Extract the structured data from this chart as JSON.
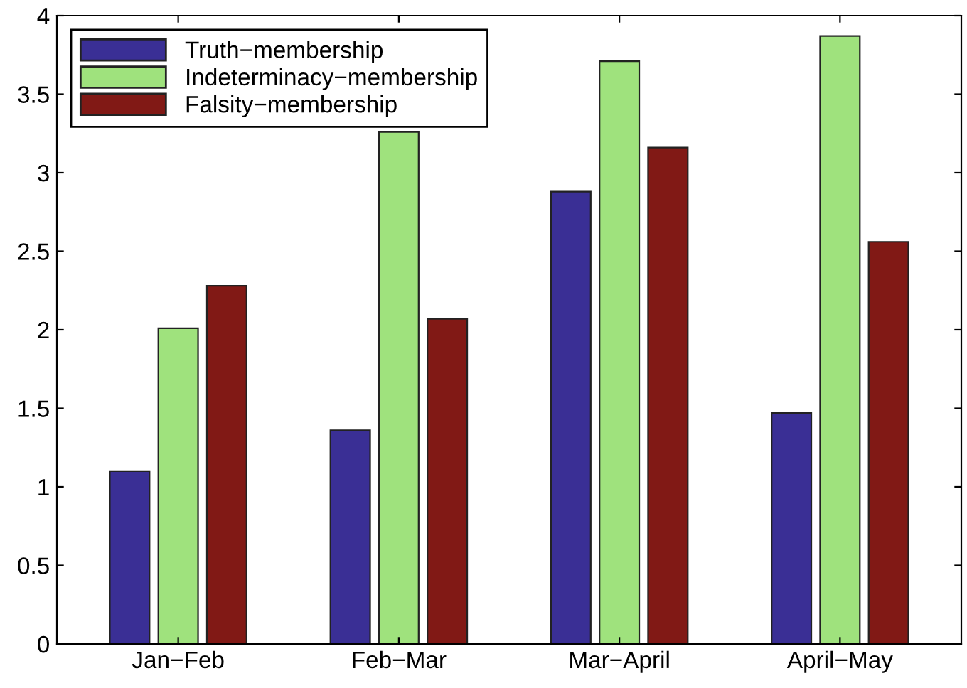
{
  "chart_data": {
    "type": "bar",
    "categories": [
      "Jan−Feb",
      "Feb−Mar",
      "Mar−April",
      "April−May"
    ],
    "series": [
      {
        "name": "Truth−membership",
        "color": "#3a2f95",
        "values": [
          1.1,
          1.36,
          2.88,
          1.47
        ]
      },
      {
        "name": "Indeterminacy−membership",
        "color": "#9fe27d",
        "values": [
          2.01,
          3.26,
          3.71,
          3.87
        ]
      },
      {
        "name": "Falsity−membership",
        "color": "#811915",
        "values": [
          2.28,
          2.07,
          3.16,
          2.56
        ]
      }
    ],
    "ylim": [
      0,
      4
    ],
    "yticks": [
      0,
      0.5,
      1,
      1.5,
      2,
      2.5,
      3,
      3.5,
      4
    ],
    "grid": false,
    "legend": "top left"
  }
}
